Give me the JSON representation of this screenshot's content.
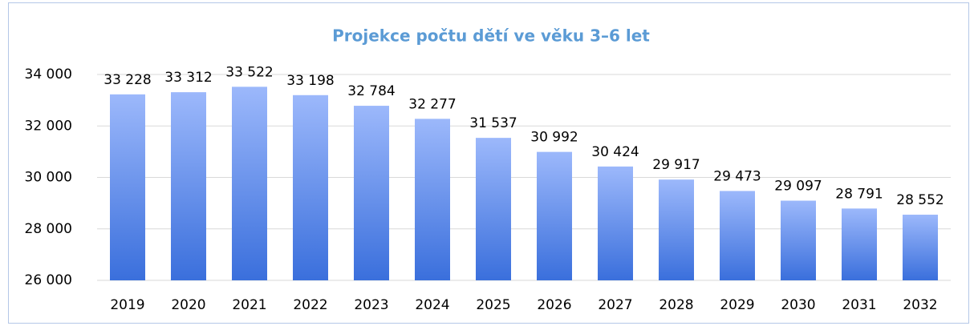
{
  "chart_data": {
    "type": "bar",
    "title": "Projekce počtu dětí ve věku 3–6 let",
    "categories": [
      "2019",
      "2020",
      "2021",
      "2022",
      "2023",
      "2024",
      "2025",
      "2026",
      "2027",
      "2028",
      "2029",
      "2030",
      "2031",
      "2032"
    ],
    "values": [
      33228,
      33312,
      33522,
      33198,
      32784,
      32277,
      31537,
      30992,
      30424,
      29917,
      29473,
      29097,
      28791,
      28552
    ],
    "value_labels": [
      "33 228",
      "33 312",
      "33 522",
      "33 198",
      "32 784",
      "32 277",
      "31 537",
      "30 992",
      "30 424",
      "29 917",
      "29 473",
      "29 097",
      "28 791",
      "28 552"
    ],
    "color": [
      "#9cb8fb",
      "#3a6fdc"
    ],
    "ylim": [
      26000,
      34000
    ],
    "yticks": [
      {
        "value": 26000,
        "label": "26 000"
      },
      {
        "value": 28000,
        "label": "28 000"
      },
      {
        "value": 30000,
        "label": "30 000"
      },
      {
        "value": 32000,
        "label": "32 000"
      },
      {
        "value": 34000,
        "label": "34 000"
      }
    ],
    "grid": true
  }
}
